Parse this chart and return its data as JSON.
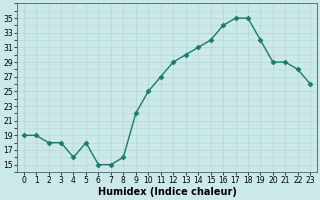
{
  "x": [
    0,
    1,
    2,
    3,
    4,
    5,
    6,
    7,
    8,
    9,
    10,
    11,
    12,
    13,
    14,
    15,
    16,
    17,
    18,
    19,
    20,
    21,
    22,
    23
  ],
  "y": [
    19,
    19,
    18,
    18,
    16,
    18,
    15,
    15,
    16,
    22,
    25,
    27,
    29,
    30,
    31,
    32,
    34,
    35,
    35,
    32,
    29,
    29,
    28,
    26
  ],
  "line_color": "#1a7a6e",
  "marker": "D",
  "marker_size": 2.5,
  "bg_color": "#cce9e9",
  "grid_color": "#b8d8d8",
  "xlabel": "Humidex (Indice chaleur)",
  "xlabel_fontsize": 7,
  "ylim": [
    14,
    37
  ],
  "yticks": [
    15,
    17,
    19,
    21,
    23,
    25,
    27,
    29,
    31,
    33,
    35
  ],
  "xtick_labels": [
    "0",
    "1",
    "2",
    "3",
    "4",
    "5",
    "6",
    "7",
    "8",
    "9",
    "10",
    "11",
    "12",
    "13",
    "14",
    "15",
    "16",
    "17",
    "18",
    "19",
    "20",
    "21",
    "22",
    "23"
  ],
  "tick_fontsize": 5.5,
  "line_width": 1.0
}
